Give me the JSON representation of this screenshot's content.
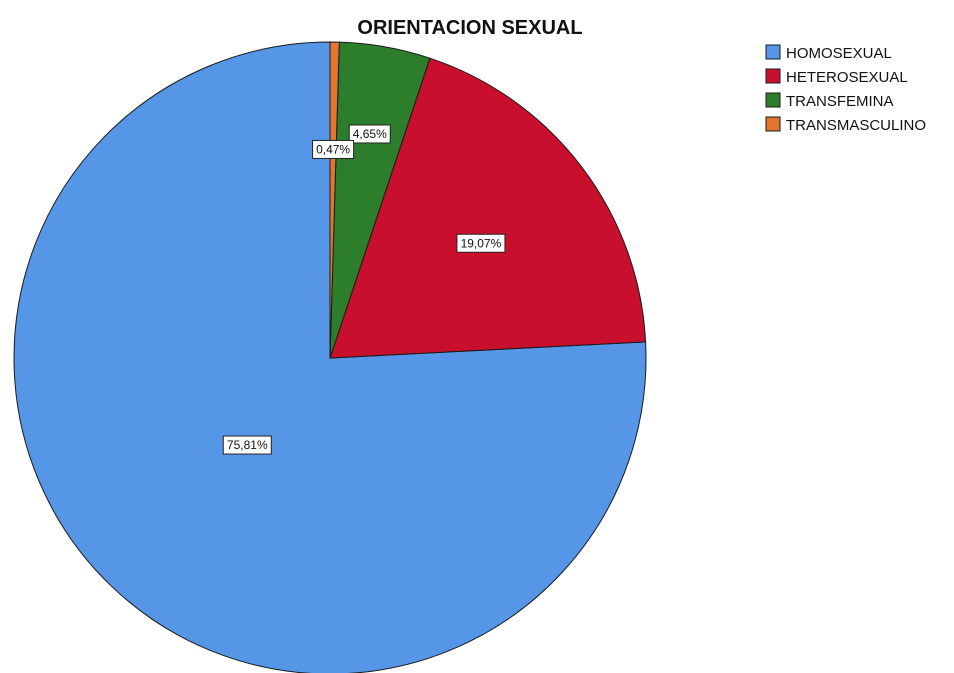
{
  "chart_data": {
    "type": "pie",
    "title": "ORIENTACION SEXUAL",
    "legend_position": "top-right",
    "start": "top, clockwise",
    "slices": [
      {
        "name": "HOMOSEXUAL",
        "value": 75.81,
        "label": "75,81%",
        "color": "#5596E6"
      },
      {
        "name": "HETEROSEXUAL",
        "value": 19.07,
        "label": "19,07%",
        "color": "#C8102E"
      },
      {
        "name": "TRANSFEMINA",
        "value": 4.65,
        "label": "4,65%",
        "color": "#2C7D2C"
      },
      {
        "name": "TRANSMASCULINO",
        "value": 0.47,
        "label": "0,47%",
        "color": "#E2762F"
      }
    ]
  }
}
